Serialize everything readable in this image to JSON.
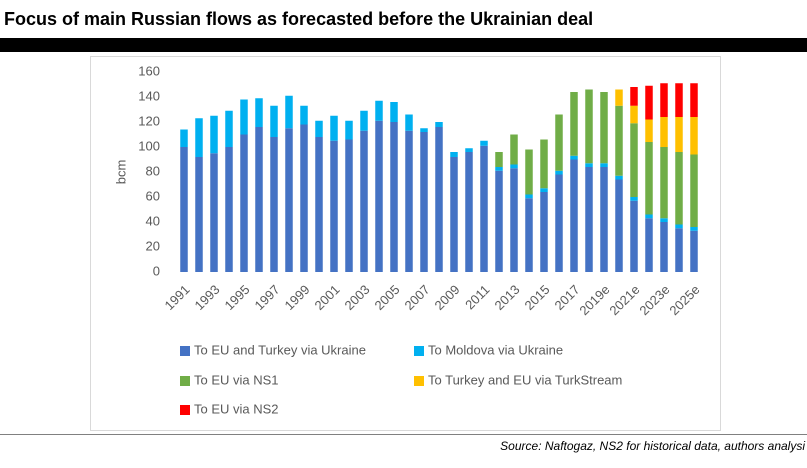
{
  "chart_data": {
    "type": "stacked-bar",
    "title": "Focus of main Russian flows as forecasted before the Ukrainian deal",
    "y_label": "bcm",
    "source": "Source: Naftogaz, NS2 for historical data, authors analysi",
    "categories": [
      "1991",
      null,
      "1993",
      null,
      "1995",
      null,
      "1997",
      null,
      "1999",
      null,
      "2001",
      null,
      "2003",
      null,
      "2005",
      null,
      "2007",
      null,
      "2009",
      null,
      "2011",
      null,
      "2013",
      null,
      "2015",
      null,
      "2017",
      null,
      "2019e",
      null,
      "2021e",
      null,
      "2023e",
      null,
      "2025e"
    ],
    "series": [
      {
        "name": "To EU and Turkey via Ukraine",
        "color": "#4472c4",
        "values": [
          100,
          92,
          95,
          100,
          110,
          116,
          108,
          115,
          118,
          108,
          105,
          106,
          113,
          121,
          120,
          113,
          112,
          116,
          92,
          96,
          101,
          81,
          83,
          59,
          64,
          78,
          90,
          84,
          84,
          74,
          57,
          43,
          40,
          35,
          33
        ]
      },
      {
        "name": "To Moldova via Ukraine",
        "color": "#00b0f0",
        "values": [
          14,
          31,
          30,
          29,
          28,
          23,
          25,
          26,
          15,
          13,
          20,
          15,
          16,
          16,
          16,
          13,
          3,
          4,
          4,
          3,
          4,
          3,
          3,
          3,
          3,
          3,
          3,
          3,
          3,
          3,
          3,
          3,
          3,
          3,
          3
        ]
      },
      {
        "name": "To EU via NS1",
        "color": "#70ad47",
        "values": [
          null,
          null,
          null,
          null,
          null,
          null,
          null,
          null,
          null,
          null,
          null,
          null,
          null,
          null,
          null,
          null,
          null,
          null,
          null,
          null,
          null,
          12,
          24,
          36,
          39,
          45,
          51,
          59,
          57,
          56,
          59,
          58,
          57,
          58,
          58
        ]
      },
      {
        "name": "To Turkey and EU via TurkStream",
        "color": "#ffc000",
        "values": [
          null,
          null,
          null,
          null,
          null,
          null,
          null,
          null,
          null,
          null,
          null,
          null,
          null,
          null,
          null,
          null,
          null,
          null,
          null,
          null,
          null,
          null,
          null,
          null,
          null,
          null,
          null,
          null,
          null,
          13,
          14,
          18,
          24,
          28,
          30
        ]
      },
      {
        "name": "To EU via NS2",
        "color": "#ff0000",
        "values": [
          null,
          null,
          null,
          null,
          null,
          null,
          null,
          null,
          null,
          null,
          null,
          null,
          null,
          null,
          null,
          null,
          null,
          null,
          null,
          null,
          null,
          null,
          null,
          null,
          null,
          null,
          null,
          null,
          null,
          null,
          15,
          27,
          27,
          27,
          27
        ]
      }
    ],
    "ylim": [
      0,
      160
    ],
    "yticks": [
      0,
      20,
      40,
      60,
      80,
      100,
      120,
      140,
      160
    ],
    "grid": false
  }
}
